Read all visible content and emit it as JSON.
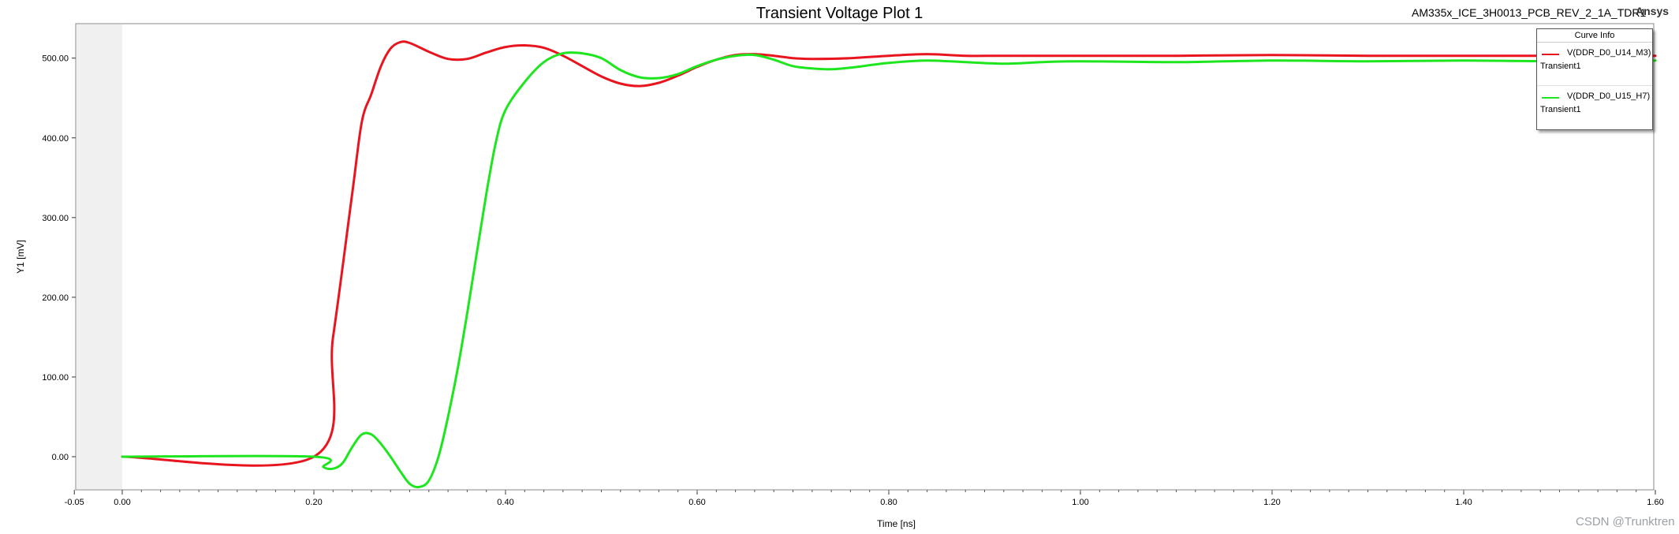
{
  "header": {
    "title": "Transient Voltage Plot 1",
    "project": "AM335x_ICE_3H0013_PCB_REV_2_1A_TDR1",
    "brand": "Ansys"
  },
  "watermark": "CSDN @Trunktren",
  "legend": {
    "heading": "Curve Info",
    "entries": [
      {
        "name": "V(DDR_D0_U14_M3)",
        "sub": "Transient1",
        "color": "#e8151f"
      },
      {
        "name": "V(DDR_D0_U15_H7)",
        "sub": "Transient1",
        "color": "#1ee61e"
      }
    ]
  },
  "chart_data": {
    "type": "line",
    "title": "Transient Voltage Plot 1",
    "xlabel": "Time [ns]",
    "ylabel": "Y1 [mV]",
    "xlim": [
      -0.05,
      1.6
    ],
    "ylim": [
      -40,
      540
    ],
    "xticks": [
      "-0.05",
      "0.00",
      "0.20",
      "0.40",
      "0.60",
      "0.80",
      "1.00",
      "1.20",
      "1.40",
      "1.60"
    ],
    "xtick_values": [
      -0.05,
      0.0,
      0.2,
      0.4,
      0.6,
      0.8,
      1.0,
      1.2,
      1.4,
      1.6
    ],
    "yticks": [
      "0.00",
      "100.00",
      "200.00",
      "300.00",
      "400.00",
      "500.00"
    ],
    "ytick_values": [
      0,
      100,
      200,
      300,
      400,
      500
    ],
    "grid": true,
    "legend_position": "top-right",
    "series": [
      {
        "name": "V(DDR_D0_U14_M3)",
        "color": "#e8151f",
        "points": [
          [
            0.0,
            0
          ],
          [
            0.2,
            0
          ],
          [
            0.22,
            150
          ],
          [
            0.24,
            330
          ],
          [
            0.25,
            420
          ],
          [
            0.26,
            455
          ],
          [
            0.27,
            490
          ],
          [
            0.28,
            512
          ],
          [
            0.29,
            520
          ],
          [
            0.3,
            519
          ],
          [
            0.32,
            508
          ],
          [
            0.34,
            499
          ],
          [
            0.36,
            499
          ],
          [
            0.38,
            507
          ],
          [
            0.4,
            514
          ],
          [
            0.42,
            516
          ],
          [
            0.44,
            513
          ],
          [
            0.46,
            503
          ],
          [
            0.48,
            490
          ],
          [
            0.5,
            477
          ],
          [
            0.52,
            468
          ],
          [
            0.54,
            465
          ],
          [
            0.56,
            469
          ],
          [
            0.58,
            478
          ],
          [
            0.6,
            489
          ],
          [
            0.62,
            498
          ],
          [
            0.64,
            504
          ],
          [
            0.66,
            505
          ],
          [
            0.68,
            503
          ],
          [
            0.7,
            500
          ],
          [
            0.72,
            499
          ],
          [
            0.76,
            500
          ],
          [
            0.8,
            503
          ],
          [
            0.84,
            505
          ],
          [
            0.88,
            503
          ],
          [
            0.92,
            503
          ],
          [
            1.0,
            503
          ],
          [
            1.1,
            503
          ],
          [
            1.2,
            504
          ],
          [
            1.3,
            503
          ],
          [
            1.4,
            503
          ],
          [
            1.5,
            503
          ],
          [
            1.6,
            503
          ]
        ]
      },
      {
        "name": "V(DDR_D0_U15_H7)",
        "color": "#1ee61e",
        "points": [
          [
            0.0,
            0
          ],
          [
            0.2,
            0
          ],
          [
            0.21,
            -13
          ],
          [
            0.22,
            -15
          ],
          [
            0.23,
            -8
          ],
          [
            0.24,
            12
          ],
          [
            0.25,
            28
          ],
          [
            0.26,
            28
          ],
          [
            0.27,
            16
          ],
          [
            0.28,
            0
          ],
          [
            0.29,
            -18
          ],
          [
            0.3,
            -34
          ],
          [
            0.31,
            -38
          ],
          [
            0.32,
            -30
          ],
          [
            0.33,
            0
          ],
          [
            0.34,
            50
          ],
          [
            0.35,
            110
          ],
          [
            0.36,
            180
          ],
          [
            0.37,
            255
          ],
          [
            0.38,
            330
          ],
          [
            0.39,
            395
          ],
          [
            0.4,
            435
          ],
          [
            0.42,
            470
          ],
          [
            0.44,
            495
          ],
          [
            0.46,
            506
          ],
          [
            0.48,
            506
          ],
          [
            0.5,
            500
          ],
          [
            0.52,
            485
          ],
          [
            0.54,
            476
          ],
          [
            0.56,
            475
          ],
          [
            0.58,
            480
          ],
          [
            0.6,
            490
          ],
          [
            0.62,
            498
          ],
          [
            0.64,
            503
          ],
          [
            0.66,
            504
          ],
          [
            0.68,
            498
          ],
          [
            0.7,
            490
          ],
          [
            0.72,
            487
          ],
          [
            0.74,
            486
          ],
          [
            0.76,
            488
          ],
          [
            0.8,
            494
          ],
          [
            0.84,
            497
          ],
          [
            0.88,
            495
          ],
          [
            0.92,
            493
          ],
          [
            0.96,
            495
          ],
          [
            1.0,
            496
          ],
          [
            1.1,
            495
          ],
          [
            1.2,
            497
          ],
          [
            1.3,
            496
          ],
          [
            1.4,
            497
          ],
          [
            1.5,
            496
          ],
          [
            1.6,
            497
          ]
        ]
      }
    ]
  }
}
